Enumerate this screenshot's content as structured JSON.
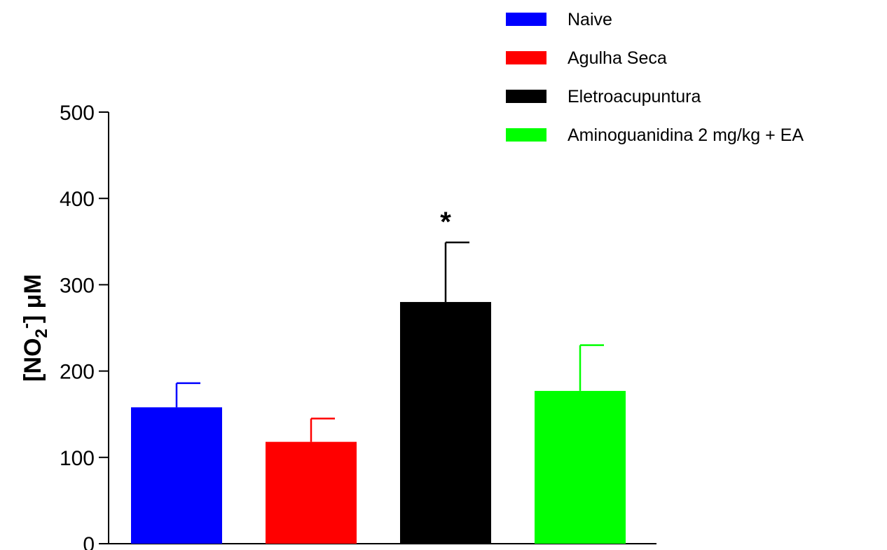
{
  "chart_data": {
    "type": "bar",
    "ylabel": {
      "prefix": "[NO",
      "subscript": "2",
      "superscript": "-",
      "suffix": "] μM"
    },
    "ylim": [
      0,
      500
    ],
    "yticks": [
      0,
      100,
      200,
      300,
      400,
      500
    ],
    "legend_position": "top-right",
    "series": [
      {
        "name": "Naive",
        "value": 158,
        "error": 28,
        "color": "#0000ff",
        "annotation": ""
      },
      {
        "name": "Agulha Seca",
        "value": 118,
        "error": 27,
        "color": "#ff0000",
        "annotation": ""
      },
      {
        "name": "Eletroacupuntura",
        "value": 280,
        "error": 69,
        "color": "#000000",
        "annotation": "*"
      },
      {
        "name": "Aminoguanidina 2 mg/kg + EA",
        "value": 177,
        "error": 53,
        "color": "#00ff00",
        "annotation": ""
      }
    ]
  }
}
